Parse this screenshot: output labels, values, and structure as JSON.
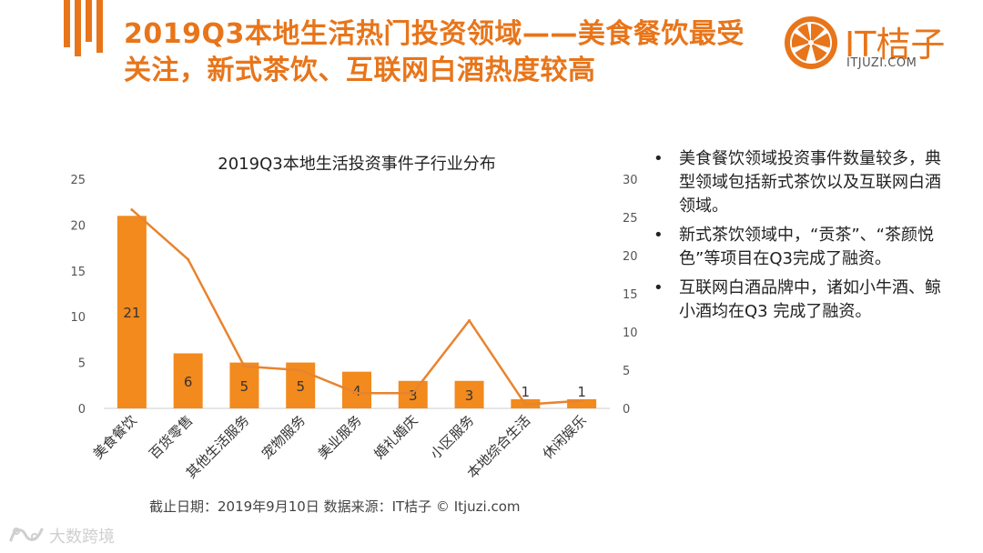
{
  "slide": {
    "title_line1": "2019Q3本地生活热门投资领域——美食餐饮最受",
    "title_line2": "关注，新式茶饮、互联网白酒热度较高"
  },
  "logo": {
    "brand_text": "IT桔子",
    "brand_url": "ITJUZI.COM"
  },
  "bullets": [
    "美食餐饮领域投资事件数量较多，典型领域包括新式茶饮以及互联网白酒领域。",
    "新式茶饮领域中，“贡茶”、“茶颜悦色”等项目在Q3完成了融资。",
    "互联网白酒品牌中，诸如小牛酒、鲸小酒均在Q3 完成了融资。"
  ],
  "bullet_marker": "•",
  "footnote": "截止日期：2019年9月10日    数据来源：IT桔子 © Itjuzi.com",
  "watermark": {
    "text": "大数跨境"
  },
  "colors": {
    "accent": "#e8751a",
    "bar": "#f28a1d",
    "line": "#e8842f",
    "axis_text": "#555555",
    "grid": "#e6e6e6"
  },
  "chart_data": {
    "type": "bar",
    "title": "2019Q3本地生活投资事件子行业分布",
    "categories": [
      "美食餐饮",
      "百货零售",
      "其他生活服务",
      "宠物服务",
      "美业服务",
      "婚礼婚庆",
      "小区服务",
      "本地综合生活",
      "休闲娱乐"
    ],
    "series": [
      {
        "type": "bar",
        "axis": "left",
        "values": [
          21,
          6,
          5,
          5,
          4,
          3,
          3,
          1,
          1
        ],
        "data_labels": [
          "21",
          "6",
          "5",
          "5",
          "4",
          "3",
          "3",
          "1",
          "1"
        ]
      },
      {
        "type": "line",
        "axis": "right",
        "values": [
          26,
          19.5,
          5.5,
          5,
          2,
          2,
          11.5,
          0.5,
          1
        ]
      }
    ],
    "ylim_left": [
      0,
      25
    ],
    "yticks_left": [
      "0",
      "5",
      "10",
      "15",
      "20",
      "25"
    ],
    "ylim_right": [
      0,
      30
    ],
    "yticks_right": [
      "0",
      "5",
      "10",
      "15",
      "20",
      "25",
      "30"
    ],
    "grid": false,
    "legend": "none"
  }
}
